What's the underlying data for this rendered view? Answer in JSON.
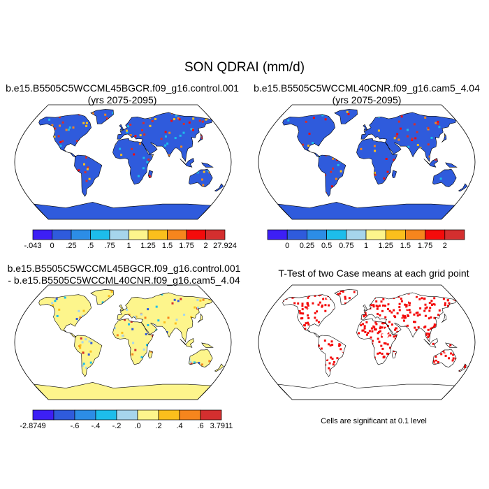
{
  "figure": {
    "title": "SON QDRAI (mm/d)",
    "significance_note": "Cells are significant at 0.1 level"
  },
  "chart_data": [
    {
      "type": "heatmap",
      "panel": "top-left",
      "title_lines": [
        "b.e15.B5505C5WCCML45BGCR.f09_g16.control.001",
        "(yrs 2075-2095)"
      ],
      "projection": "Robinson",
      "colorbar": {
        "labels": [
          "-.043",
          "0",
          ".25",
          ".5",
          ".75",
          "1",
          "1.25",
          "1.5",
          "1.75",
          "2",
          "27.924"
        ],
        "colors": [
          "#3d1ff5",
          "#2f5bdc",
          "#2c8de6",
          "#1dbdeb",
          "#a6d5ec",
          "#fdf58c",
          "#fbbf1c",
          "#f6851d",
          "#f40b0b",
          "#d42f2f"
        ]
      }
    },
    {
      "type": "heatmap",
      "panel": "top-right",
      "title_lines": [
        "b.e15.B5505C5WCCML40CNR.f09_g16.cam5_4.04",
        "(yrs 2075-2095)"
      ],
      "projection": "Robinson",
      "colorbar": {
        "labels": [
          "0",
          "0.25",
          "0.5",
          "0.75",
          "1",
          "1.25",
          "1.5",
          "1.75",
          "2"
        ],
        "colors": [
          "#3d1ff5",
          "#2f5bdc",
          "#2c8de6",
          "#1dbdeb",
          "#a6d5ec",
          "#fdf58c",
          "#fbbf1c",
          "#f6851d",
          "#f40b0b",
          "#d42f2f"
        ]
      }
    },
    {
      "type": "heatmap",
      "panel": "bottom-left",
      "title_lines": [
        "b.e15.B5505C5WCCML45BGCR.f09_g16.control.001",
        "- b.e15.B5505C5WCCML40CNR.f09_g16.cam5_4.04"
      ],
      "projection": "Robinson",
      "colorbar": {
        "labels": [
          "-2.8749",
          "-.6",
          "-.4",
          "-.2",
          ".0",
          ".2",
          ".4",
          ".6",
          "3.7911"
        ],
        "colors": [
          "#3d1ff5",
          "#2f5bdc",
          "#2c8de6",
          "#1dbdeb",
          "#a6d5ec",
          "#fdf58c",
          "#fbbf1c",
          "#f6851d",
          "#d42f2f"
        ]
      }
    },
    {
      "type": "heatmap",
      "panel": "bottom-right",
      "title_lines": [
        "T-Test of two Case means at each grid point"
      ],
      "projection": "Robinson",
      "significant_color": "#f40b0b"
    }
  ]
}
